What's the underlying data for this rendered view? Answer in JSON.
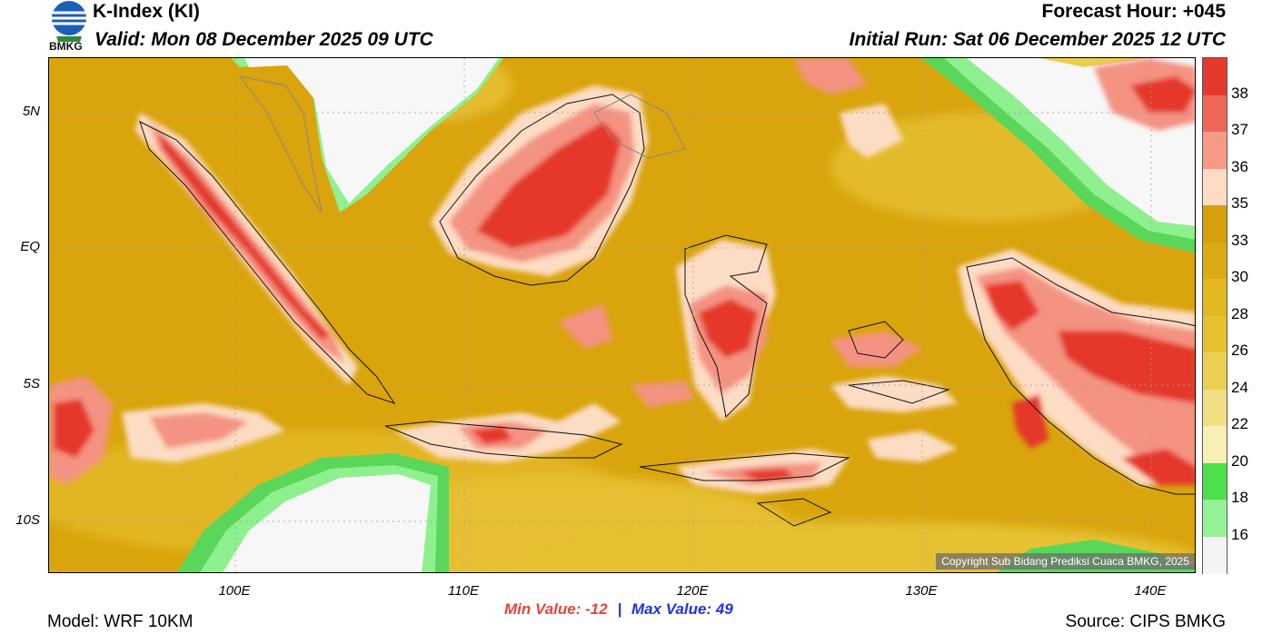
{
  "header": {
    "title": "K-Index (KI)",
    "valid": "Valid: Mon 08 December 2025 09 UTC",
    "forecast_hour": "Forecast Hour: +045",
    "initial_run": "Initial Run: Sat 06 December 2025 12 UTC"
  },
  "logo": {
    "text": "BMKG"
  },
  "map": {
    "lat_labels": [
      "5N",
      "EQ",
      "5S",
      "10S"
    ],
    "lon_labels": [
      "100E",
      "110E",
      "120E",
      "130E",
      "140E"
    ],
    "copyright": "Copyright Sub Bidang Prediksi Cuaca BMKG, 2025",
    "colors": {
      "ocean_base": "#d9a40c",
      "dry_white": "#f7f7f7",
      "green_light": "#8ef08e",
      "green": "#5ad75a",
      "yellow_light": "#f3e8a0",
      "yellow": "#ebcf55",
      "peach": "#fddcc4",
      "salmon": "#f49382",
      "red": "#e5392c"
    }
  },
  "colorbar": {
    "labels": [
      "38",
      "37",
      "36",
      "35",
      "33",
      "30",
      "28",
      "26",
      "24",
      "22",
      "20",
      "18",
      "16"
    ],
    "colors": [
      "#e4392b",
      "#ef6655",
      "#f69a86",
      "#fddcc5",
      "#d5a00c",
      "#dcaa14",
      "#e1b81f",
      "#e6c22e",
      "#ecce52",
      "#f2df83",
      "#f8efb4",
      "#4ce04c",
      "#96f096",
      "#f4f4f4"
    ]
  },
  "stats": {
    "min_label": "Min Value:",
    "min_value": "-12",
    "separator": "|",
    "max_label": "Max Value:",
    "max_value": "49"
  },
  "footer": {
    "model": "Model: WRF 10KM",
    "source": "Source: CIPS BMKG"
  }
}
